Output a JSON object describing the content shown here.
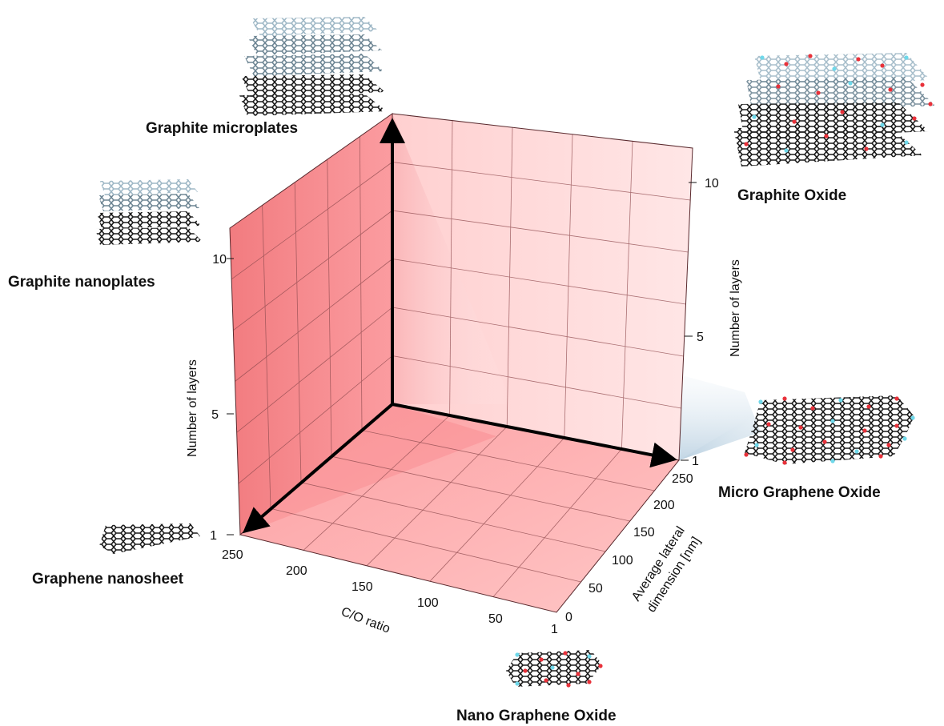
{
  "materials": {
    "graphite_microplates": "Graphite microplates",
    "graphite_nanoplates": "Graphite nanoplates",
    "graphene_nanosheet": "Graphene nanosheet",
    "graphite_oxide": "Graphite Oxide",
    "micro_graphene_oxide": "Micro Graphene Oxide",
    "nano_graphene_oxide": "Nano Graphene Oxide"
  },
  "axes": {
    "left_layers_title": "Number of layers",
    "left_layers_ticks": [
      "1",
      "5",
      "10"
    ],
    "right_layers_title": "Number of layers",
    "right_layers_ticks": [
      "1",
      "5",
      "10"
    ],
    "co_ratio_title": "C/O ratio",
    "co_ratio_ticks": [
      "250",
      "200",
      "150",
      "100",
      "50",
      "1"
    ],
    "lateral_title_line1": "Average lateral",
    "lateral_title_line2": "dimension [nm]",
    "lateral_ticks": [
      "0",
      "50",
      "100",
      "150",
      "200",
      "250"
    ]
  },
  "colors": {
    "left_wall": "#f68a8e",
    "back_wall": "#ffe0e0",
    "floor": "#fbb4b4",
    "grid": "#8e4a4e",
    "carbon": "#1b1b1b",
    "oxygen": "#e8313a",
    "hydrogen": "#6fd8ea"
  },
  "icons": [
    "multilayer-graphene-icon",
    "graphene-oxide-sheet-icon",
    "graphene-sheet-icon"
  ]
}
